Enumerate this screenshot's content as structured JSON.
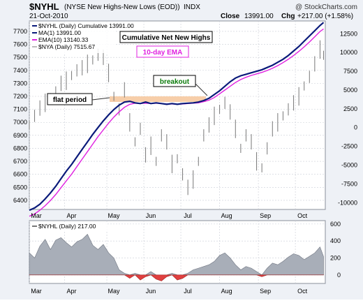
{
  "header": {
    "symbol": "$NYHL",
    "name": "(NYSE New Highs-New Lows (EOD))",
    "exchange": "INDX",
    "date": "21-Oct-2010",
    "close_label": "Close",
    "close_value": "13991.00",
    "chg_label": "Chg",
    "chg_value": "+217.00 (+1.58%)",
    "watermark": "@ StockCharts.com"
  },
  "colors": {
    "panel_bg": "#ffffff",
    "frame_bg": "#eef1f6",
    "grid": "#c9cdd6",
    "cumulative": "#0a1a7a",
    "ema": "#e020e0",
    "nya": "#777777",
    "highlight": "#f6c9a0",
    "area_pos": "#a8aeb8",
    "area_neg": "#e04040",
    "annotation_green": "#0a7a0a"
  },
  "chart_data": [
    {
      "type": "line",
      "legend": [
        "$NYHL (Daily) Cumulative 13991.00",
        "MA(1) 13991.00",
        "EMA(10) 13140.33",
        "$NYA (Daily) 7515.67"
      ],
      "annotations": {
        "title_box": "Cumulative Net New Highs",
        "ema_box": "10-day EMA",
        "breakout": "breakout",
        "flat": "flat period"
      },
      "x_labels": [
        "Mar",
        "Apr",
        "May",
        "Jun",
        "Jul",
        "Aug",
        "Sep",
        "Oct"
      ],
      "left_axis": {
        "ticks": [
          6400,
          6500,
          6600,
          6700,
          6800,
          6900,
          7000,
          7100,
          7200,
          7300,
          7400,
          7500,
          7600,
          7700
        ],
        "ylim": [
          6330,
          7780
        ]
      },
      "right_axis": {
        "ticks": [
          12500,
          10000,
          7500,
          5000,
          2500,
          0,
          -2500,
          -5000,
          -7500,
          -10000
        ],
        "ylim": [
          -10900,
          14200
        ]
      },
      "series": [
        {
          "name": "$NYHL (Daily) Cumulative",
          "axis": "right",
          "x": [
            0,
            3,
            6,
            9,
            12,
            15,
            18,
            21,
            24,
            27,
            30,
            33,
            36,
            39,
            42,
            45,
            48,
            51,
            54,
            57,
            60,
            63,
            66,
            69,
            72,
            75,
            78,
            81,
            84,
            87,
            90,
            93,
            96,
            99,
            102,
            105,
            108,
            111,
            114,
            117,
            120,
            123,
            126,
            129,
            132,
            135,
            138,
            141,
            144,
            147,
            150,
            153,
            156,
            159,
            162,
            165,
            167
          ],
          "y": [
            -11000,
            -10700,
            -10200,
            -9500,
            -8700,
            -7800,
            -6800,
            -5800,
            -4900,
            -3900,
            -2900,
            -1900,
            -900,
            0,
            900,
            1700,
            2400,
            3000,
            3400,
            3500,
            3300,
            3200,
            3400,
            3200,
            3300,
            3200,
            3100,
            3200,
            3100,
            3200,
            3250,
            3300,
            3400,
            3600,
            3900,
            4400,
            4900,
            5500,
            6100,
            6600,
            6900,
            7100,
            7300,
            7500,
            7700,
            8000,
            8300,
            8700,
            9100,
            9600,
            10200,
            10800,
            11500,
            12200,
            12900,
            13600,
            13991
          ]
        },
        {
          "name": "EMA(10)",
          "axis": "right",
          "x": [
            0,
            3,
            6,
            9,
            12,
            15,
            18,
            21,
            24,
            27,
            30,
            33,
            36,
            39,
            42,
            45,
            48,
            51,
            54,
            57,
            60,
            63,
            66,
            69,
            72,
            75,
            78,
            81,
            84,
            87,
            90,
            93,
            96,
            99,
            102,
            105,
            108,
            111,
            114,
            117,
            120,
            123,
            126,
            129,
            132,
            135,
            138,
            141,
            144,
            147,
            150,
            153,
            156,
            159,
            162,
            165,
            167
          ],
          "y": [
            -11800,
            -11500,
            -11000,
            -10400,
            -9700,
            -8900,
            -8000,
            -7100,
            -6200,
            -5200,
            -4200,
            -3200,
            -2200,
            -1200,
            -300,
            600,
            1400,
            2100,
            2700,
            3100,
            3250,
            3200,
            3250,
            3200,
            3250,
            3200,
            3150,
            3150,
            3100,
            3150,
            3200,
            3250,
            3300,
            3450,
            3650,
            4000,
            4500,
            5000,
            5500,
            6000,
            6400,
            6700,
            6950,
            7150,
            7350,
            7600,
            7900,
            8250,
            8650,
            9100,
            9600,
            10150,
            10750,
            11400,
            12100,
            12800,
            13140
          ]
        },
        {
          "name": "$NYA (Daily)",
          "axis": "left",
          "x": [
            0,
            3,
            6,
            9,
            12,
            15,
            18,
            21,
            24,
            27,
            30,
            33,
            36,
            39,
            42,
            45,
            48,
            51,
            54,
            57,
            60,
            63,
            66,
            69,
            72,
            75,
            78,
            81,
            84,
            87,
            90,
            93,
            96,
            99,
            102,
            105,
            108,
            111,
            114,
            117,
            120,
            123,
            126,
            129,
            132,
            135,
            138,
            141,
            144,
            147,
            150,
            153,
            156,
            159,
            162,
            165,
            167
          ],
          "y": [
            6980,
            7050,
            7110,
            7150,
            7190,
            7230,
            7300,
            7320,
            7360,
            7400,
            7420,
            7450,
            7480,
            7520,
            7500,
            7380,
            7200,
            7100,
            7250,
            7000,
            6850,
            6950,
            6750,
            6820,
            6700,
            6900,
            6850,
            6680,
            6720,
            6600,
            6500,
            6560,
            6700,
            6900,
            6980,
            7050,
            7100,
            7150,
            7080,
            6950,
            6800,
            6900,
            6850,
            6700,
            6650,
            6800,
            6950,
            7000,
            7050,
            7100,
            7150,
            7200,
            7280,
            7350,
            7450,
            7560,
            7516
          ]
        }
      ]
    },
    {
      "type": "area",
      "legend": [
        "$NYHL (Daily) 217.00"
      ],
      "right_axis": {
        "ticks": [
          600,
          400,
          200,
          0
        ],
        "ylim": [
          -100,
          640
        ]
      },
      "x_labels": [
        "Mar",
        "Apr",
        "May",
        "Jun",
        "Jul",
        "Aug",
        "Sep",
        "Oct"
      ],
      "series": [
        {
          "name": "$NYHL (Daily)",
          "x": [
            0,
            3,
            6,
            9,
            12,
            15,
            18,
            21,
            24,
            27,
            30,
            33,
            36,
            39,
            42,
            45,
            48,
            51,
            54,
            57,
            60,
            63,
            66,
            69,
            72,
            75,
            78,
            81,
            84,
            87,
            90,
            93,
            96,
            99,
            102,
            105,
            108,
            111,
            114,
            117,
            120,
            123,
            126,
            129,
            132,
            135,
            138,
            141,
            144,
            147,
            150,
            153,
            156,
            159,
            162,
            165,
            167
          ],
          "y": [
            260,
            200,
            340,
            420,
            300,
            410,
            440,
            380,
            330,
            390,
            420,
            480,
            350,
            300,
            360,
            260,
            200,
            60,
            20,
            -40,
            20,
            -60,
            -20,
            40,
            -50,
            -70,
            -20,
            20,
            -60,
            -40,
            20,
            60,
            80,
            100,
            120,
            160,
            230,
            260,
            200,
            120,
            60,
            100,
            80,
            40,
            -20,
            80,
            140,
            120,
            160,
            210,
            250,
            230,
            180,
            220,
            260,
            330,
            217
          ]
        }
      ]
    }
  ]
}
